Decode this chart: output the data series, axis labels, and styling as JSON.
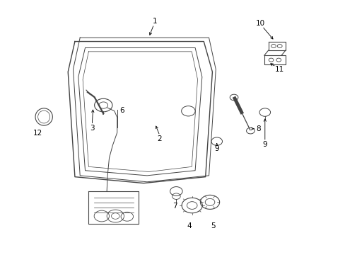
{
  "bg_color": "#ffffff",
  "line_color": "#444444",
  "text_color": "#000000",
  "fig_width": 4.89,
  "fig_height": 3.6,
  "dpi": 100
}
